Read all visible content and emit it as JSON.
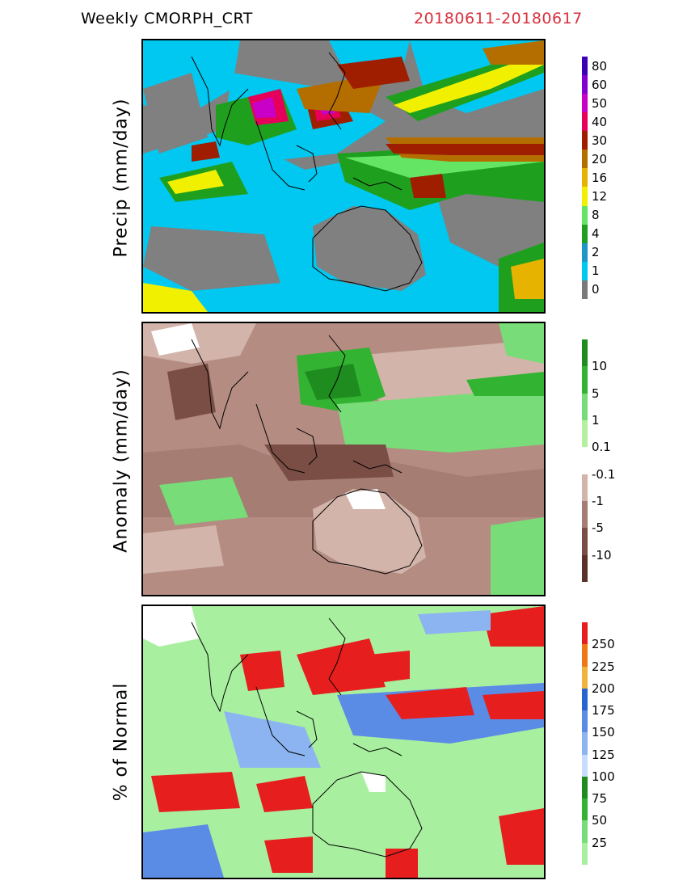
{
  "header": {
    "title": "Weekly  CMORPH_CRT",
    "dates": "20180611-20180617",
    "dates_color": "#d8303c"
  },
  "panels": [
    {
      "ylabel": "Precip  (mm/day)",
      "background": "#808080",
      "colorbar": {
        "colors": [
          "#7a7a7a",
          "#00c8f0",
          "#1e96c8",
          "#1ea01e",
          "#64e664",
          "#f0f000",
          "#e6b400",
          "#b46e00",
          "#a01e00",
          "#e6005a",
          "#c800c8",
          "#8200d2",
          "#3c00b4"
        ],
        "labels": [
          "0",
          "1",
          "2",
          "4",
          "8",
          "12",
          "16",
          "20",
          "30",
          "40",
          "50",
          "60",
          "80"
        ]
      }
    },
    {
      "ylabel": "Anomaly  (mm/day)",
      "background": "#b48c82",
      "colorbar": {
        "colors": [
          "#5a3228",
          "#7a4e44",
          "#a57d72",
          "#d2b4aa",
          "#ffffff",
          "#b4f0a0",
          "#78dc78",
          "#32b432",
          "#1e8c1e"
        ],
        "labels": [
          "-10",
          "-5",
          "-1",
          "-0.1",
          "0.1",
          "1",
          "5",
          "10"
        ]
      }
    },
    {
      "ylabel": "% of  Normal",
      "background": "#a8f0a0",
      "colorbar": {
        "colors": [
          "#a8f0a0",
          "#78dc78",
          "#32b432",
          "#1e8c1e",
          "#c8dcff",
          "#8cb4f0",
          "#5a8ce6",
          "#2864d2",
          "#f0b43c",
          "#f07814",
          "#e61e1e"
        ],
        "labels": [
          "25",
          "50",
          "75",
          "100",
          "125",
          "150",
          "175",
          "200",
          "225",
          "250"
        ]
      }
    }
  ]
}
